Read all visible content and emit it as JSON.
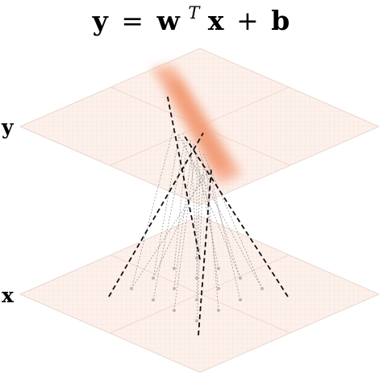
{
  "equation": {
    "lhs": "y",
    "equals": "=",
    "weight": "w",
    "transpose": "T",
    "input": "x",
    "plus": "+",
    "bias": "b"
  },
  "layers": {
    "output_label": "y",
    "input_label": "x"
  },
  "colors": {
    "plane_fill": "#fdf1ec",
    "plane_grid": "#f3d3c4",
    "plane_edge": "#e6d6d0",
    "heat": "#f4a27e",
    "dashed_dark": "#111111",
    "dashed_light": "#9a9a9a",
    "node": "#b8b8b8"
  }
}
